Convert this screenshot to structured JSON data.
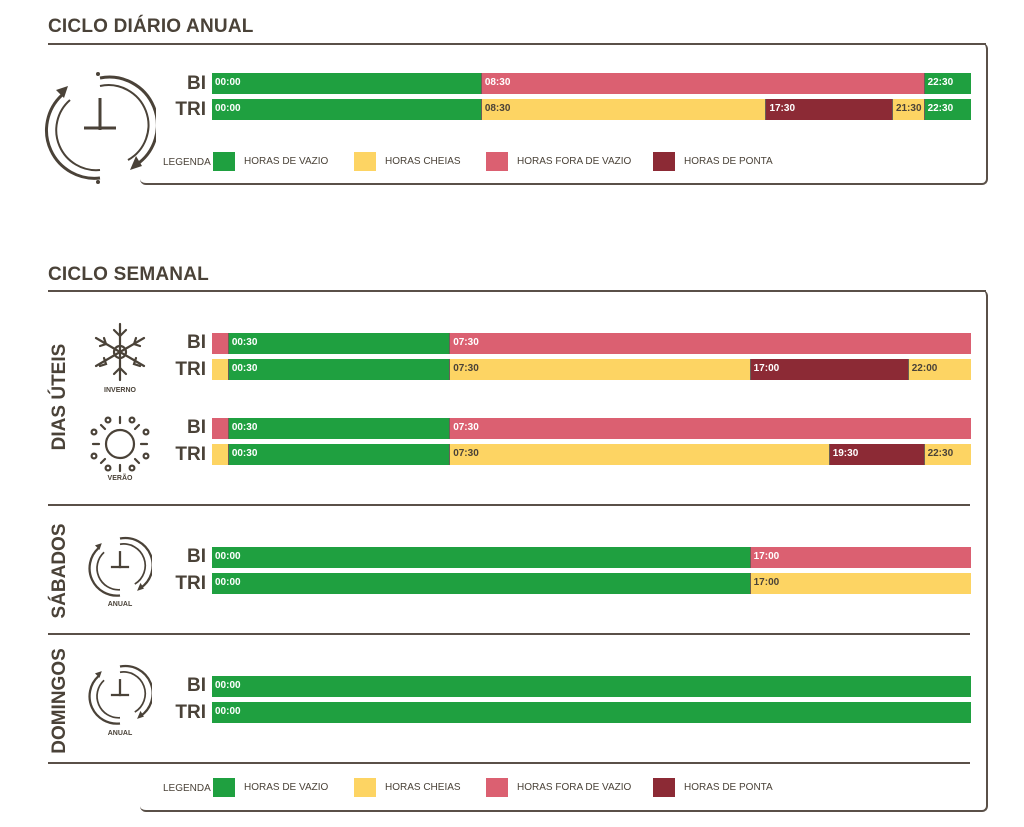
{
  "colors": {
    "vazio": "#1fa040",
    "cheias": "#fdd463",
    "fora_vazio": "#db6071",
    "ponta": "#8c2a35",
    "text_on_dark": "#ffffff",
    "text_on_light": "#4a4238"
  },
  "daily": {
    "title": "CICLO DIÁRIO ANUAL",
    "icon": "clock-cycle-icon",
    "rows": [
      {
        "label": "BI",
        "segments": [
          {
            "start": "00:00",
            "end": "08:30",
            "type": "vazio"
          },
          {
            "start": "08:30",
            "end": "22:30",
            "type": "fora_vazio"
          },
          {
            "start": "22:30",
            "end": "24:00",
            "type": "vazio"
          }
        ]
      },
      {
        "label": "TRI",
        "segments": [
          {
            "start": "00:00",
            "end": "08:30",
            "type": "vazio"
          },
          {
            "start": "08:30",
            "end": "17:30",
            "type": "cheias"
          },
          {
            "start": "17:30",
            "end": "21:30",
            "type": "ponta"
          },
          {
            "start": "21:30",
            "end": "22:30",
            "type": "cheias"
          },
          {
            "start": "22:30",
            "end": "24:00",
            "type": "vazio"
          }
        ]
      }
    ]
  },
  "legend": {
    "title": "LEGENDA",
    "items": [
      {
        "type": "vazio",
        "label": "HORAS DE VAZIO"
      },
      {
        "type": "cheias",
        "label": "HORAS CHEIAS"
      },
      {
        "type": "fora_vazio",
        "label": "HORAS FORA DE VAZIO"
      },
      {
        "type": "ponta",
        "label": "HORAS DE PONTA"
      }
    ]
  },
  "weekly": {
    "title": "CICLO SEMANAL",
    "groups": [
      {
        "label": "DIAS ÚTEIS",
        "subs": [
          {
            "icon": "snowflake-icon",
            "caption": "INVERNO",
            "rows": [
              {
                "label": "BI",
                "segments": [
                  {
                    "start": "00:00",
                    "end": "00:30",
                    "type": "fora_vazio",
                    "hide": true
                  },
                  {
                    "start": "00:30",
                    "end": "07:30",
                    "type": "vazio"
                  },
                  {
                    "start": "07:30",
                    "end": "24:00",
                    "type": "fora_vazio"
                  }
                ]
              },
              {
                "label": "TRI",
                "segments": [
                  {
                    "start": "00:00",
                    "end": "00:30",
                    "type": "cheias",
                    "hide": true
                  },
                  {
                    "start": "00:30",
                    "end": "07:30",
                    "type": "vazio"
                  },
                  {
                    "start": "07:30",
                    "end": "17:00",
                    "type": "cheias"
                  },
                  {
                    "start": "17:00",
                    "end": "22:00",
                    "type": "ponta"
                  },
                  {
                    "start": "22:00",
                    "end": "24:00",
                    "type": "cheias"
                  }
                ]
              }
            ]
          },
          {
            "icon": "sun-icon",
            "caption": "VERÃO",
            "rows": [
              {
                "label": "BI",
                "segments": [
                  {
                    "start": "00:00",
                    "end": "00:30",
                    "type": "fora_vazio",
                    "hide": true
                  },
                  {
                    "start": "00:30",
                    "end": "07:30",
                    "type": "vazio"
                  },
                  {
                    "start": "07:30",
                    "end": "24:00",
                    "type": "fora_vazio"
                  }
                ]
              },
              {
                "label": "TRI",
                "segments": [
                  {
                    "start": "00:00",
                    "end": "00:30",
                    "type": "cheias",
                    "hide": true
                  },
                  {
                    "start": "00:30",
                    "end": "07:30",
                    "type": "vazio"
                  },
                  {
                    "start": "07:30",
                    "end": "19:30",
                    "type": "cheias"
                  },
                  {
                    "start": "19:30",
                    "end": "22:30",
                    "type": "ponta"
                  },
                  {
                    "start": "22:30",
                    "end": "24:00",
                    "type": "cheias"
                  }
                ]
              }
            ]
          }
        ]
      },
      {
        "label": "SÁBADOS",
        "subs": [
          {
            "icon": "clock-cycle-icon",
            "caption": "ANUAL",
            "rows": [
              {
                "label": "BI",
                "segments": [
                  {
                    "start": "00:00",
                    "end": "17:00",
                    "type": "vazio"
                  },
                  {
                    "start": "17:00",
                    "end": "24:00",
                    "type": "fora_vazio"
                  }
                ]
              },
              {
                "label": "TRI",
                "segments": [
                  {
                    "start": "00:00",
                    "end": "17:00",
                    "type": "vazio"
                  },
                  {
                    "start": "17:00",
                    "end": "24:00",
                    "type": "cheias"
                  }
                ]
              }
            ]
          }
        ]
      },
      {
        "label": "DOMINGOS",
        "subs": [
          {
            "icon": "clock-cycle-icon",
            "caption": "ANUAL",
            "rows": [
              {
                "label": "BI",
                "segments": [
                  {
                    "start": "00:00",
                    "end": "24:00",
                    "type": "vazio"
                  }
                ]
              },
              {
                "label": "TRI",
                "segments": [
                  {
                    "start": "00:00",
                    "end": "24:00",
                    "type": "vazio"
                  }
                ]
              }
            ]
          }
        ]
      }
    ]
  }
}
